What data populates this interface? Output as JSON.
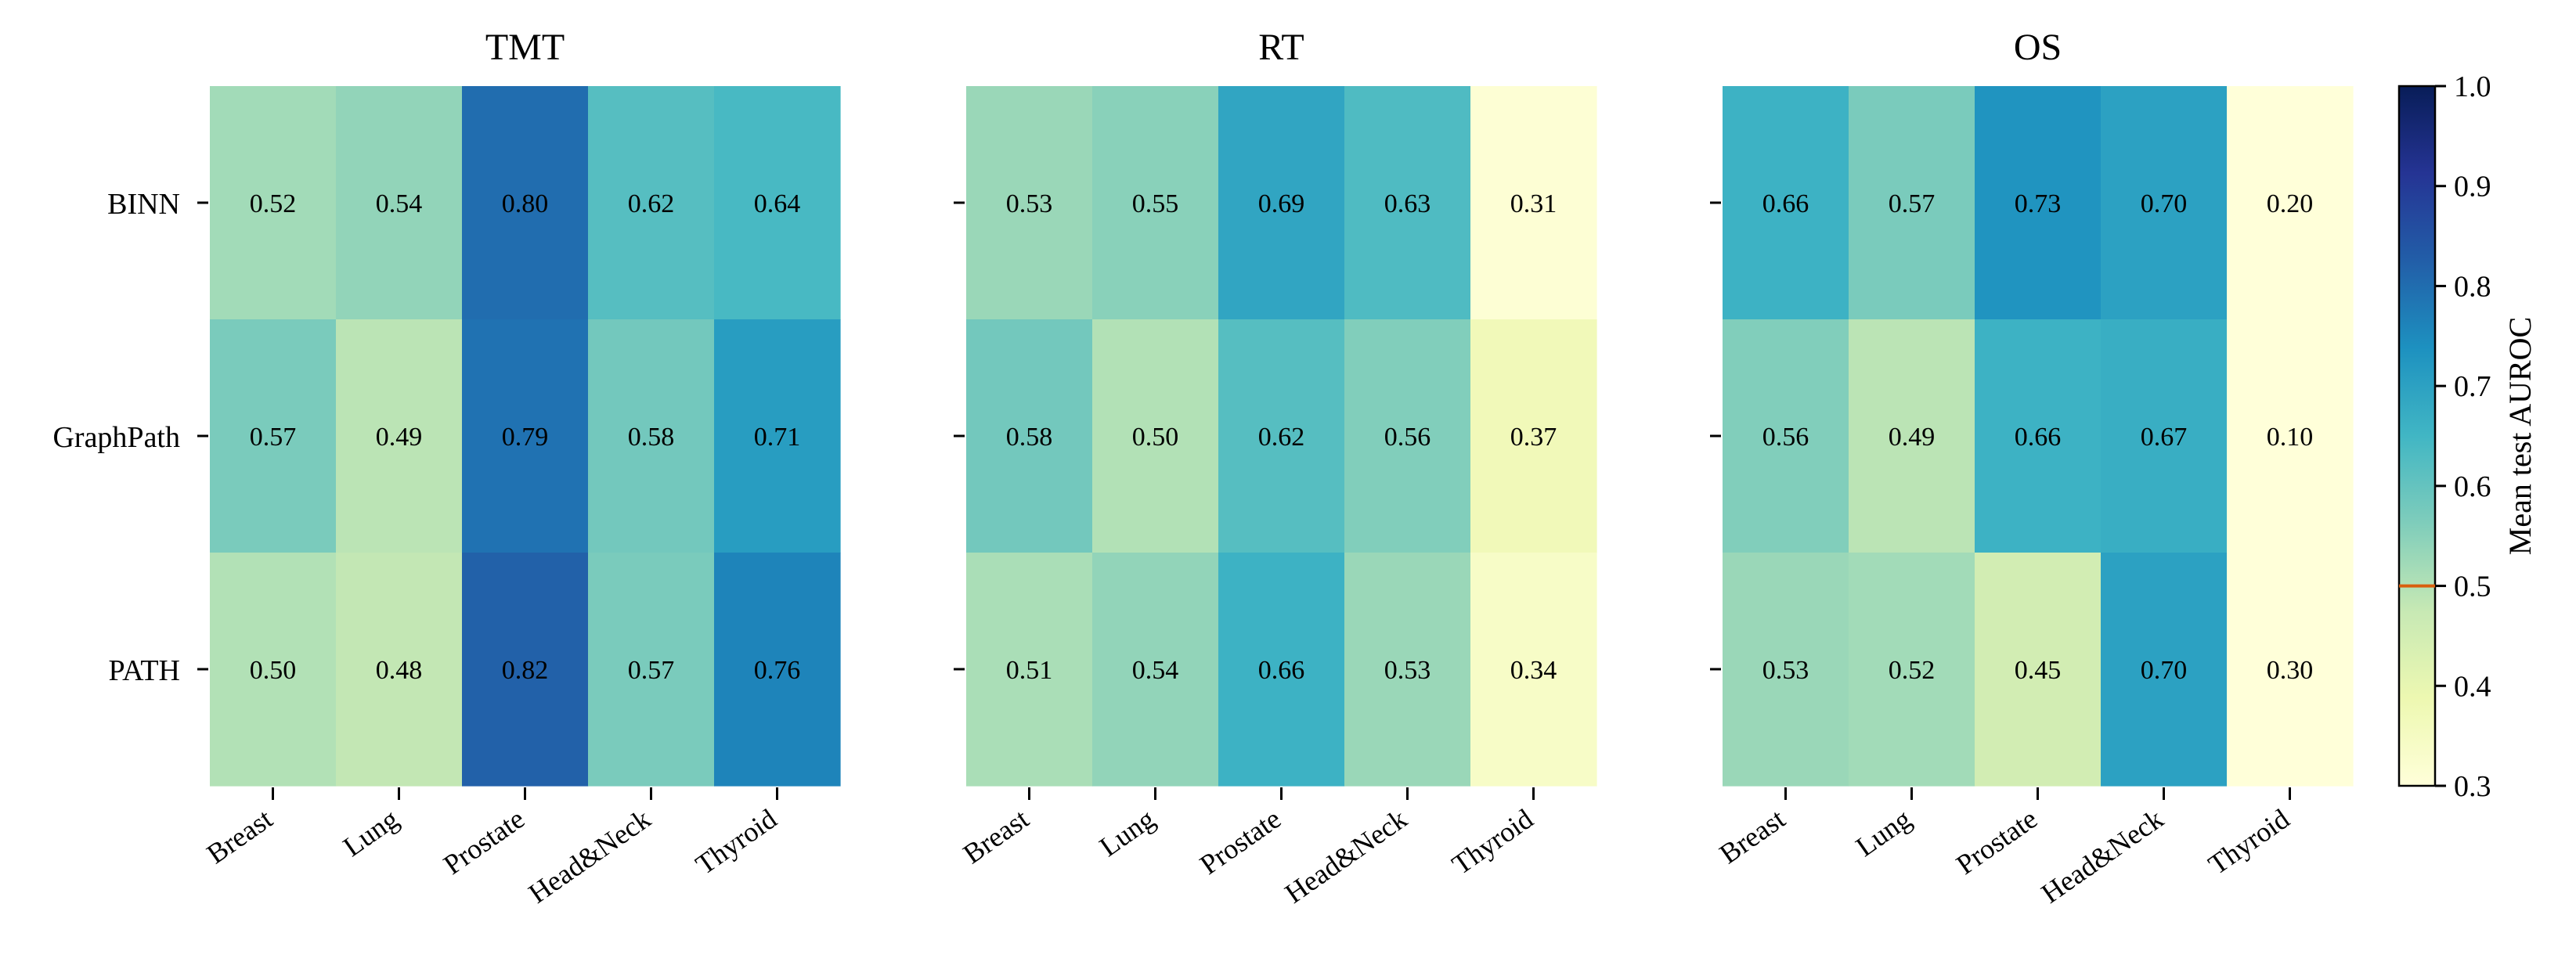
{
  "chart_data": {
    "type": "heatmap",
    "rows": [
      "BINN",
      "GraphPath",
      "PATH"
    ],
    "columns": [
      "Breast",
      "Lung",
      "Prostate",
      "Head&Neck",
      "Thyroid"
    ],
    "panels": [
      {
        "title": "TMT",
        "values": [
          [
            0.52,
            0.54,
            0.8,
            0.62,
            0.64
          ],
          [
            0.57,
            0.49,
            0.79,
            0.58,
            0.71
          ],
          [
            0.5,
            0.48,
            0.82,
            0.57,
            0.76
          ]
        ]
      },
      {
        "title": "RT",
        "values": [
          [
            0.53,
            0.55,
            0.69,
            0.63,
            0.31
          ],
          [
            0.58,
            0.5,
            0.62,
            0.56,
            0.37
          ],
          [
            0.51,
            0.54,
            0.66,
            0.53,
            0.34
          ]
        ]
      },
      {
        "title": "OS",
        "values": [
          [
            0.66,
            0.57,
            0.73,
            0.7,
            0.2
          ],
          [
            0.56,
            0.49,
            0.66,
            0.67,
            0.1
          ],
          [
            0.53,
            0.52,
            0.45,
            0.7,
            0.3
          ]
        ]
      }
    ],
    "colorbar": {
      "label": "Mean test AUROC",
      "range": [
        0.3,
        1.0
      ],
      "ticks": [
        "0.3",
        "0.4",
        "0.5",
        "0.6",
        "0.7",
        "0.8",
        "0.9",
        "1.0"
      ],
      "reference_line": 0.5,
      "reference_color": "#d95f0e",
      "colormap": "YlGnBu",
      "colormap_stops": [
        "#ffffd9",
        "#edf8b1",
        "#c7e9b4",
        "#7fcdbb",
        "#41b6c4",
        "#1d91c0",
        "#225ea8",
        "#253494",
        "#081d58"
      ]
    },
    "text_color_dark": "#000000",
    "text_color_light": "#ffffff"
  }
}
